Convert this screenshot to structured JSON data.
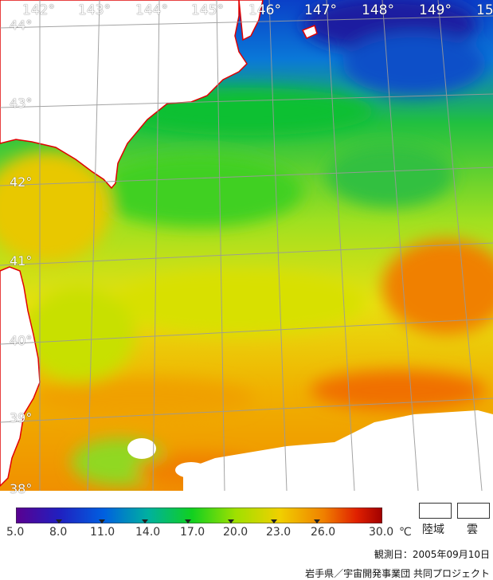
{
  "map": {
    "lon_labels": [
      "142°",
      "143°",
      "144°",
      "145°",
      "146°",
      "147°",
      "148°",
      "149°",
      "15"
    ],
    "lat_labels": [
      "44°",
      "43°",
      "42°",
      "41°",
      "40°",
      "39°",
      "38°"
    ],
    "colors": {
      "land": "#ffffff",
      "coast": "#e00000",
      "grid": "#9a9a9a",
      "cloud": "#ffffff"
    }
  },
  "legend": {
    "ticks": [
      "5.0",
      "8.0",
      "11.0",
      "14.0",
      "17.0",
      "20.0",
      "23.0",
      "26.0",
      "30.0"
    ],
    "unit": "℃",
    "land_label": "陸域",
    "cloud_label": "雲",
    "scale_colors": [
      "#5a0090",
      "#2020c0",
      "#0060e0",
      "#00b0a0",
      "#10d020",
      "#a0e000",
      "#f0d000",
      "#f08000",
      "#e02000",
      "#a00000"
    ]
  },
  "footer": {
    "observation_date": "観測日：2005年09月10日",
    "credit": "岩手県／宇宙開発事業団  共同プロジェクト"
  }
}
